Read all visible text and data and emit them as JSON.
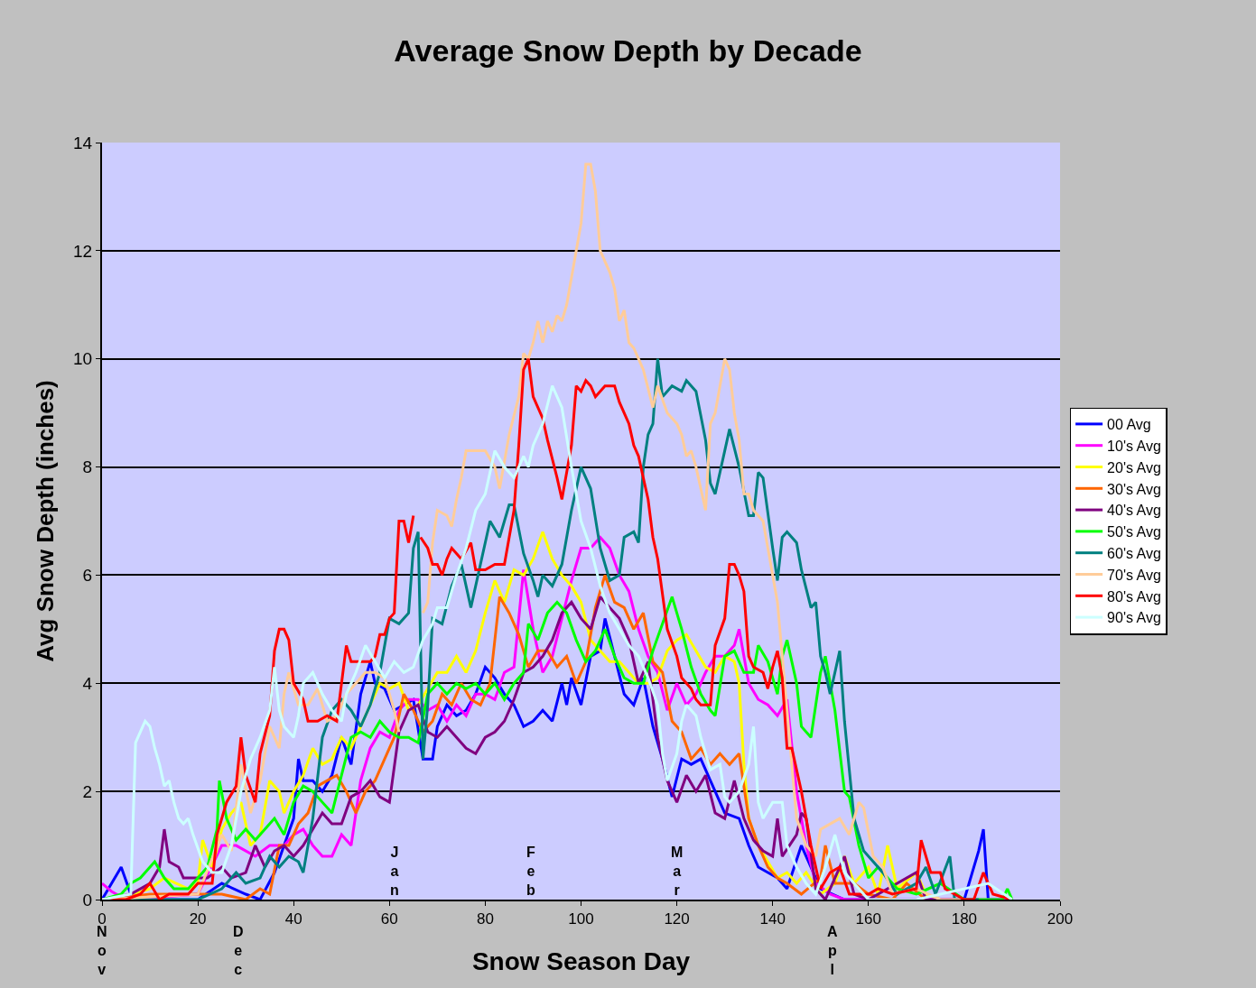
{
  "chart_data": {
    "type": "line",
    "title": "Average Snow Depth by Decade",
    "xlabel": "Snow Season Day",
    "ylabel": "Avg Snow Depth (inches)",
    "xlim": [
      0,
      200
    ],
    "xticks": [
      0,
      20,
      40,
      60,
      80,
      100,
      120,
      140,
      160,
      180,
      200
    ],
    "ylim": [
      0,
      14
    ],
    "yticks": [
      0,
      2,
      4,
      6,
      8,
      10,
      12,
      14
    ],
    "grid": "y",
    "legend": "right",
    "marker": "none",
    "line_style": "solid",
    "annotations": [
      "Nov",
      "Dec",
      "Jan",
      "Feb",
      "Mar",
      "Apl"
    ],
    "series": [
      {
        "name": "00 Avg",
        "color": "#0000ff",
        "x": [
          0,
          4,
          6,
          10,
          20,
          25,
          30,
          33,
          36,
          38,
          40,
          41,
          42,
          44,
          46,
          48,
          50,
          52,
          54,
          56,
          57,
          59,
          61,
          63,
          65,
          67,
          69,
          70,
          72,
          74,
          76,
          78,
          80,
          82,
          84,
          86,
          88,
          90,
          92,
          94,
          96,
          97,
          98,
          100,
          102,
          104,
          105,
          107,
          109,
          111,
          113,
          115,
          117,
          119,
          121,
          123,
          125,
          127,
          130,
          133,
          135,
          137,
          139,
          141,
          143,
          146,
          148,
          150,
          155,
          180,
          183,
          184,
          185,
          190
        ],
        "values": [
          0,
          0.6,
          0.1,
          0,
          0,
          0.3,
          0.1,
          0,
          0.5,
          1.0,
          1.5,
          2.6,
          2.2,
          2.2,
          2.0,
          2.3,
          3.0,
          2.5,
          3.8,
          4.4,
          4.0,
          3.9,
          3.5,
          3.6,
          3.7,
          2.6,
          2.6,
          3.2,
          3.6,
          3.4,
          3.5,
          3.8,
          4.3,
          4.1,
          3.8,
          3.6,
          3.2,
          3.3,
          3.5,
          3.3,
          4.0,
          3.6,
          4.1,
          3.6,
          4.5,
          4.6,
          5.2,
          4.5,
          3.8,
          3.6,
          4.1,
          3.2,
          2.6,
          1.9,
          2.6,
          2.5,
          2.6,
          2.2,
          1.6,
          1.5,
          1.0,
          0.6,
          0.5,
          0.4,
          0.2,
          1.0,
          0.6,
          0.2,
          0,
          0,
          0.9,
          1.3,
          0,
          0
        ]
      },
      {
        "name": "10's Avg",
        "color": "#ff00ff",
        "x": [
          0,
          2,
          5,
          20,
          25,
          28,
          32,
          35,
          38,
          40,
          42,
          44,
          46,
          48,
          50,
          52,
          54,
          56,
          58,
          60,
          62,
          64,
          66,
          68,
          70,
          72,
          74,
          76,
          78,
          80,
          82,
          84,
          86,
          88,
          90,
          92,
          94,
          96,
          98,
          100,
          102,
          104,
          106,
          108,
          110,
          112,
          114,
          116,
          118,
          120,
          122,
          124,
          126,
          128,
          130,
          132,
          133,
          135,
          137,
          139,
          141,
          143,
          145,
          147,
          149,
          152,
          155,
          190
        ],
        "values": [
          0.3,
          0.15,
          0,
          0.1,
          1.0,
          1.0,
          0.8,
          1.0,
          1.0,
          1.2,
          1.3,
          1.0,
          0.8,
          0.8,
          1.2,
          1.0,
          2.2,
          2.8,
          3.1,
          3.0,
          3.5,
          3.7,
          3.7,
          3.5,
          3.6,
          3.3,
          3.6,
          3.4,
          3.8,
          3.8,
          3.7,
          4.2,
          4.3,
          6.1,
          5.0,
          4.2,
          4.5,
          5.2,
          5.9,
          6.5,
          6.5,
          6.7,
          6.5,
          6.0,
          5.7,
          5.0,
          4.5,
          4.2,
          3.5,
          4.0,
          3.6,
          3.8,
          4.2,
          4.5,
          4.5,
          4.7,
          5.0,
          4.0,
          3.7,
          3.6,
          3.4,
          3.7,
          2.0,
          1.0,
          0.3,
          0.1,
          0,
          0
        ]
      },
      {
        "name": "20's Avg",
        "color": "#ffff00",
        "x": [
          0,
          5,
          10,
          13,
          18,
          20,
          21,
          23,
          25,
          27,
          29,
          31,
          33,
          35,
          37,
          38,
          40,
          42,
          44,
          46,
          48,
          50,
          52,
          54,
          56,
          58,
          60,
          62,
          64,
          66,
          68,
          70,
          72,
          74,
          76,
          78,
          80,
          82,
          84,
          86,
          88,
          90,
          92,
          94,
          96,
          98,
          100,
          102,
          104,
          106,
          108,
          110,
          112,
          114,
          116,
          118,
          120,
          122,
          124,
          126,
          128,
          130,
          132,
          133,
          134,
          135,
          137,
          139,
          141,
          143,
          145,
          147,
          150,
          153,
          155,
          157,
          160,
          162,
          164,
          166,
          170,
          172,
          175
        ],
        "values": [
          0,
          0.05,
          0.2,
          0.4,
          0.2,
          0.3,
          1.1,
          0.6,
          1.3,
          1.6,
          1.8,
          1.0,
          1.2,
          2.2,
          2.0,
          1.6,
          2.0,
          2.3,
          2.8,
          2.5,
          2.6,
          3.0,
          2.8,
          3.2,
          3.6,
          4.0,
          3.9,
          4.0,
          3.5,
          3.6,
          3.9,
          4.2,
          4.2,
          4.5,
          4.2,
          4.6,
          5.3,
          5.9,
          5.5,
          6.1,
          6.0,
          6.3,
          6.8,
          6.3,
          6.0,
          5.8,
          5.5,
          4.8,
          4.6,
          4.4,
          4.4,
          4.2,
          4.0,
          4.0,
          4.1,
          4.6,
          4.8,
          4.9,
          4.6,
          4.3,
          4.2,
          4.5,
          4.4,
          4.0,
          2.5,
          1.5,
          1.0,
          0.7,
          0.4,
          0.5,
          0.3,
          0.5,
          0.1,
          0.3,
          0.8,
          0.3,
          0.6,
          0.1,
          1.0,
          0.2,
          0.5,
          0.1,
          0
        ]
      },
      {
        "name": "30's Avg",
        "color": "#ff6600",
        "x": [
          0,
          10,
          15,
          20,
          25,
          30,
          33,
          35,
          37,
          39,
          41,
          43,
          45,
          47,
          49,
          51,
          53,
          55,
          57,
          59,
          61,
          63,
          65,
          67,
          69,
          71,
          73,
          75,
          77,
          79,
          81,
          83,
          85,
          87,
          89,
          91,
          93,
          95,
          97,
          99,
          101,
          103,
          105,
          107,
          109,
          111,
          113,
          115,
          117,
          119,
          121,
          123,
          125,
          127,
          129,
          131,
          133,
          135,
          137,
          139,
          141,
          143,
          146,
          150,
          151,
          153,
          157,
          160,
          165,
          168,
          172
        ],
        "values": [
          0,
          0.1,
          0.1,
          0.1,
          0.1,
          0,
          0.2,
          0.1,
          1.0,
          1.0,
          1.4,
          1.6,
          2.1,
          2.2,
          2.3,
          2.0,
          1.6,
          2.0,
          2.2,
          2.6,
          3.0,
          3.8,
          3.5,
          3.1,
          3.3,
          3.8,
          3.6,
          4.0,
          3.7,
          3.6,
          4.0,
          5.6,
          5.3,
          4.9,
          4.3,
          4.6,
          4.6,
          4.3,
          4.5,
          4.0,
          4.4,
          5.4,
          6.0,
          5.5,
          5.4,
          5.0,
          5.3,
          4.4,
          4.2,
          3.3,
          3.1,
          2.6,
          2.8,
          2.5,
          2.7,
          2.5,
          2.7,
          1.5,
          1.0,
          0.6,
          0.4,
          0.3,
          0.1,
          0.4,
          1.0,
          0.3,
          0.3,
          0.1,
          0,
          0.3,
          0
        ]
      },
      {
        "name": "40's Avg",
        "color": "#800080",
        "x": [
          0,
          6,
          10,
          12,
          13,
          14,
          16,
          17,
          20,
          22,
          25,
          27,
          30,
          32,
          34,
          36,
          38,
          40,
          42,
          44,
          46,
          48,
          50,
          52,
          54,
          56,
          58,
          60,
          62,
          64,
          66,
          68,
          70,
          72,
          74,
          76,
          78,
          80,
          82,
          84,
          86,
          88,
          90,
          92,
          94,
          96,
          98,
          100,
          102,
          104,
          106,
          108,
          110,
          112,
          114,
          116,
          118,
          120,
          122,
          124,
          126,
          128,
          130,
          132,
          134,
          136,
          138,
          140,
          141,
          142,
          145,
          146,
          147,
          149,
          151,
          155,
          157,
          160,
          170,
          172,
          180
        ],
        "values": [
          0,
          0.1,
          0.3,
          0.6,
          1.3,
          0.7,
          0.6,
          0.4,
          0.4,
          0.4,
          0.6,
          0.4,
          0.5,
          1.0,
          0.6,
          0.9,
          1.0,
          0.8,
          1.0,
          1.3,
          1.6,
          1.4,
          1.4,
          1.9,
          2.0,
          2.2,
          1.9,
          1.8,
          3.1,
          3.5,
          3.6,
          3.1,
          3.0,
          3.2,
          3.0,
          2.8,
          2.7,
          3.0,
          3.1,
          3.3,
          3.7,
          4.2,
          4.3,
          4.5,
          4.8,
          5.3,
          5.5,
          5.2,
          5.0,
          5.6,
          5.4,
          5.2,
          4.8,
          4.0,
          4.4,
          3.0,
          2.2,
          1.8,
          2.3,
          2.0,
          2.3,
          1.6,
          1.5,
          2.2,
          1.5,
          1.1,
          0.9,
          0.8,
          1.5,
          0.8,
          1.2,
          1.6,
          1.5,
          0.2,
          0,
          0.8,
          0.1,
          0,
          0.5,
          0,
          0
        ]
      },
      {
        "name": "50's Avg",
        "color": "#00ff00",
        "x": [
          0,
          4,
          6,
          8,
          11,
          13,
          15,
          18,
          22,
          24,
          24.5,
          26,
          28,
          30,
          32,
          34,
          36,
          38,
          40,
          42,
          44,
          46,
          48,
          50,
          52,
          54,
          56,
          58,
          60,
          62,
          64,
          66,
          68,
          70,
          72,
          74,
          76,
          78,
          80,
          82,
          84,
          86,
          88,
          89,
          91,
          93,
          95,
          97,
          99,
          101,
          103,
          105,
          107,
          109,
          111,
          113,
          115,
          117,
          119,
          121,
          123,
          125,
          127,
          128,
          130,
          132,
          134,
          136,
          137,
          139,
          141,
          142,
          143,
          145,
          146,
          148,
          150,
          151,
          153,
          155,
          156,
          158,
          160,
          162,
          166,
          170,
          175,
          180,
          188,
          189,
          190
        ],
        "values": [
          0,
          0.1,
          0.3,
          0.4,
          0.7,
          0.4,
          0.2,
          0.2,
          0.6,
          1.3,
          2.2,
          1.5,
          1.1,
          1.3,
          1.1,
          1.3,
          1.5,
          1.2,
          1.8,
          2.1,
          2.0,
          1.8,
          1.6,
          2.3,
          3.0,
          3.1,
          3.0,
          3.3,
          3.1,
          3.0,
          3.0,
          2.9,
          3.8,
          4.0,
          3.8,
          4.0,
          3.9,
          4.0,
          3.8,
          4.0,
          3.7,
          4.0,
          4.2,
          5.1,
          4.8,
          5.3,
          5.5,
          5.3,
          4.8,
          4.4,
          4.6,
          5.0,
          4.5,
          4.1,
          4.0,
          4.0,
          4.6,
          5.1,
          5.6,
          5.0,
          4.3,
          3.8,
          3.5,
          3.4,
          4.5,
          4.6,
          4.2,
          4.2,
          4.7,
          4.4,
          3.8,
          4.5,
          4.8,
          4.0,
          3.2,
          3.0,
          4.2,
          4.5,
          3.5,
          2.0,
          1.9,
          1.0,
          0.4,
          0.6,
          0.2,
          0.1,
          0.3,
          0,
          0,
          0.2,
          0
        ]
      },
      {
        "name": "60's Avg",
        "color": "#008080",
        "x": [
          0,
          20,
          25,
          28,
          30,
          33,
          35,
          37,
          39,
          41,
          42,
          44,
          46,
          48,
          50,
          52,
          54,
          56,
          58,
          60,
          62,
          64,
          65,
          66,
          67,
          68,
          69,
          71,
          73,
          75,
          77,
          79,
          81,
          83,
          85,
          86,
          88,
          90,
          91,
          92,
          94,
          96,
          98,
          100,
          102,
          104,
          106,
          108,
          109,
          111,
          112,
          113,
          114,
          115,
          116,
          117,
          119,
          121,
          122,
          124,
          126,
          127,
          128,
          130,
          131,
          133,
          135,
          136,
          137,
          138,
          140,
          141,
          142,
          143,
          145,
          146,
          148,
          149,
          150,
          151,
          152,
          154,
          155,
          157,
          159,
          161,
          163,
          166,
          170,
          172,
          174,
          177,
          178,
          183
        ],
        "values": [
          0,
          0,
          0.2,
          0.5,
          0.3,
          0.4,
          0.8,
          0.6,
          0.8,
          0.7,
          0.5,
          1.5,
          3.0,
          3.5,
          3.7,
          3.5,
          3.2,
          3.6,
          4.2,
          5.2,
          5.1,
          5.3,
          6.5,
          6.8,
          2.6,
          3.6,
          5.2,
          5.1,
          5.8,
          6.2,
          5.4,
          6.2,
          7.0,
          6.7,
          7.3,
          7.3,
          6.4,
          5.9,
          5.6,
          6.0,
          5.8,
          6.2,
          7.2,
          8.0,
          7.6,
          6.5,
          5.9,
          6.0,
          6.7,
          6.8,
          6.6,
          8.0,
          8.6,
          8.8,
          10.0,
          9.3,
          9.5,
          9.4,
          9.6,
          9.4,
          8.5,
          7.7,
          7.5,
          8.3,
          8.7,
          8.0,
          7.1,
          7.1,
          7.9,
          7.8,
          6.5,
          5.9,
          6.7,
          6.8,
          6.6,
          6.1,
          5.4,
          5.5,
          4.5,
          4.2,
          3.8,
          4.6,
          3.3,
          1.5,
          0.9,
          0.7,
          0.5,
          0.1,
          0.3,
          0.6,
          0.1,
          0.8,
          0,
          0
        ]
      },
      {
        "name": "70's Avg",
        "color": "#ffcc99",
        "x": [
          0,
          20,
          25,
          27,
          29,
          31,
          33,
          35,
          37,
          38,
          39,
          41,
          43,
          45,
          47,
          49,
          51,
          53,
          55,
          57,
          59,
          61,
          62,
          64,
          67,
          68,
          69,
          70,
          72,
          73,
          74,
          75,
          76,
          78,
          80,
          82,
          83,
          85,
          87,
          88,
          89,
          90,
          91,
          92,
          93,
          94,
          95,
          96,
          97,
          99,
          100,
          101,
          102,
          103,
          104,
          106,
          107,
          108,
          109,
          110,
          111,
          112,
          113,
          115,
          116,
          118,
          120,
          121,
          122,
          123,
          124,
          126,
          127,
          128,
          130,
          131,
          132,
          133,
          134,
          135,
          136,
          137,
          138,
          139,
          141,
          143,
          145,
          147,
          149,
          150,
          152,
          154,
          156,
          158,
          159,
          161,
          163,
          165,
          170,
          175,
          180
        ],
        "values": [
          0,
          0.1,
          1.2,
          0.9,
          2.5,
          1.6,
          2.2,
          3.2,
          2.8,
          3.8,
          4.2,
          3.6,
          3.6,
          3.9,
          3.3,
          3.4,
          3.8,
          4.0,
          4.2,
          4.2,
          4.1,
          3.5,
          3.1,
          null,
          5.3,
          5.5,
          6.6,
          7.2,
          7.1,
          6.9,
          7.4,
          7.8,
          8.3,
          8.3,
          8.3,
          8.0,
          7.6,
          8.6,
          9.3,
          10.1,
          10.0,
          10.3,
          10.7,
          10.3,
          10.7,
          10.5,
          10.8,
          10.7,
          11.0,
          12.0,
          12.5,
          13.6,
          13.6,
          13.1,
          12.0,
          11.6,
          11.3,
          10.7,
          10.9,
          10.3,
          10.2,
          10.0,
          9.8,
          9.1,
          9.5,
          9.0,
          8.8,
          8.6,
          8.2,
          8.3,
          8.0,
          7.2,
          8.8,
          9.0,
          10.0,
          9.8,
          9.0,
          8.5,
          7.5,
          7.5,
          7.2,
          7.1,
          7.0,
          6.5,
          5.5,
          3.5,
          1.5,
          1.0,
          0.8,
          1.3,
          1.4,
          1.5,
          1.2,
          1.8,
          1.7,
          0.8,
          0.6,
          0.1,
          0.2,
          0,
          0
        ]
      },
      {
        "name": "80's Avg",
        "color": "#ff0000",
        "x": [
          0,
          5,
          8,
          10,
          12,
          14,
          18,
          20,
          23,
          24,
          26,
          28,
          29,
          30,
          32,
          33,
          35,
          36,
          37,
          38,
          39,
          40,
          42,
          43,
          45,
          47,
          49,
          51,
          52,
          54,
          56,
          57,
          58,
          59,
          60,
          61,
          62,
          63,
          64,
          65,
          66,
          66.5,
          68,
          69,
          70,
          71,
          72,
          73,
          75,
          77,
          78,
          80,
          82,
          84,
          86,
          87,
          88,
          89,
          90,
          92,
          93,
          95,
          96,
          98,
          99,
          100,
          101,
          102,
          103,
          104,
          105,
          107,
          108,
          110,
          111,
          112,
          113,
          114,
          115,
          116,
          118,
          120,
          121,
          123,
          124,
          125,
          126,
          127,
          128,
          130,
          131,
          132,
          133,
          134,
          135,
          136,
          138,
          139,
          140,
          141,
          142,
          143,
          144,
          146,
          148,
          150,
          152,
          154,
          156,
          160,
          162,
          165,
          170,
          171,
          173,
          175,
          176,
          180,
          182,
          184,
          186,
          190
        ],
        "values": [
          0,
          0,
          0.1,
          0.3,
          0,
          0.1,
          0.1,
          0.3,
          0.3,
          1.2,
          1.8,
          2.1,
          3.0,
          2.3,
          1.8,
          2.7,
          3.4,
          4.6,
          5.0,
          5.0,
          4.8,
          4.0,
          3.7,
          3.3,
          3.3,
          3.4,
          3.3,
          4.7,
          4.4,
          4.4,
          4.4,
          4.5,
          4.9,
          4.9,
          5.2,
          5.3,
          7.0,
          7.0,
          6.6,
          7.1,
          null,
          6.7,
          6.5,
          6.2,
          6.2,
          6.0,
          6.3,
          6.5,
          6.3,
          6.6,
          6.1,
          6.1,
          6.2,
          6.2,
          7.2,
          8.4,
          9.8,
          10.0,
          9.3,
          8.9,
          8.5,
          7.8,
          7.4,
          8.4,
          9.5,
          9.4,
          9.6,
          9.5,
          9.3,
          9.4,
          9.5,
          9.5,
          9.2,
          8.8,
          8.4,
          8.2,
          7.8,
          7.4,
          6.7,
          6.3,
          5.0,
          4.5,
          4.1,
          3.9,
          3.7,
          3.6,
          3.6,
          3.6,
          4.7,
          5.2,
          6.2,
          6.2,
          6.0,
          5.7,
          4.5,
          4.3,
          4.2,
          3.9,
          4.3,
          4.6,
          4.1,
          2.8,
          2.8,
          2.0,
          1.0,
          0.2,
          0.5,
          0.6,
          0.1,
          0.1,
          0.2,
          0.1,
          0.2,
          1.1,
          0.5,
          0.5,
          0.2,
          0,
          0,
          0.5,
          0.1,
          0
        ]
      },
      {
        "name": "90's Avg",
        "color": "#ccffff",
        "x": [
          0,
          6,
          7,
          8,
          9,
          10,
          11,
          12,
          13,
          14,
          15,
          16,
          17,
          18,
          19,
          21,
          23,
          25,
          27,
          29,
          31,
          33,
          35,
          36,
          37,
          38,
          40,
          41,
          42,
          44,
          46,
          48,
          50,
          51,
          53,
          55,
          57,
          59,
          61,
          63,
          65,
          67,
          69,
          70,
          72,
          74,
          76,
          78,
          80,
          82,
          84,
          86,
          88,
          89,
          90,
          92,
          94,
          96,
          98,
          100,
          102,
          104,
          106,
          108,
          110,
          112,
          114,
          116,
          117,
          118,
          120,
          121,
          122,
          124,
          125,
          127,
          129,
          130,
          131,
          133,
          135,
          136,
          137,
          138,
          140,
          142,
          143,
          145,
          147,
          149,
          151,
          153,
          155,
          157,
          160,
          170,
          185,
          190
        ],
        "values": [
          0,
          0.1,
          2.9,
          3.1,
          3.3,
          3.2,
          2.8,
          2.5,
          2.1,
          2.2,
          1.8,
          1.5,
          1.4,
          1.5,
          1.2,
          0.7,
          0.5,
          0.5,
          1.0,
          2.0,
          2.6,
          3.0,
          3.5,
          4.3,
          3.5,
          3.2,
          3.0,
          3.4,
          4.0,
          4.2,
          3.8,
          3.5,
          3.3,
          3.8,
          4.2,
          4.7,
          4.4,
          4.1,
          4.4,
          4.2,
          4.3,
          4.8,
          5.1,
          5.4,
          5.4,
          6.0,
          6.5,
          7.2,
          7.5,
          8.3,
          8.0,
          7.8,
          8.2,
          8.0,
          8.4,
          8.8,
          9.5,
          9.1,
          8.0,
          7.0,
          6.5,
          5.8,
          5.3,
          5.0,
          4.7,
          4.5,
          4.1,
          3.6,
          2.7,
          2.2,
          2.7,
          3.3,
          3.6,
          3.4,
          3.0,
          2.4,
          2.5,
          1.9,
          1.8,
          2.0,
          2.5,
          3.2,
          1.8,
          1.5,
          1.8,
          1.8,
          1.0,
          0.6,
          0.3,
          0.1,
          0.6,
          1.2,
          0.5,
          0.3,
          0,
          0,
          0.3,
          0
        ]
      }
    ]
  }
}
